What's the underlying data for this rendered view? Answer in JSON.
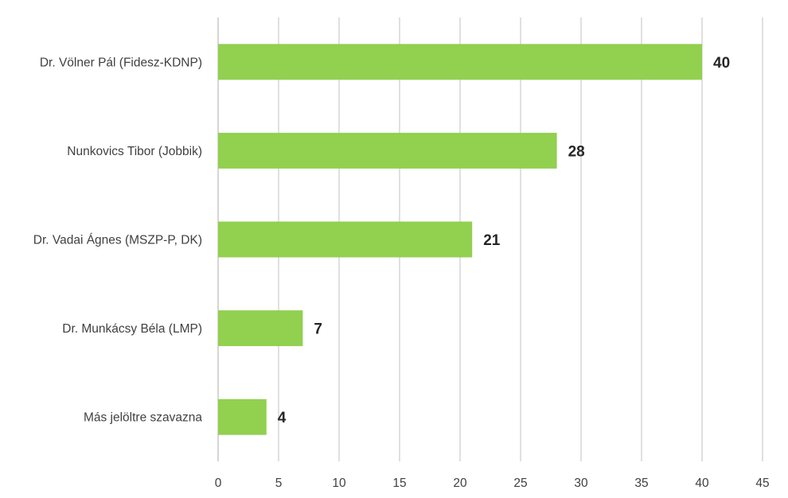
{
  "chart_data": {
    "type": "bar",
    "orientation": "horizontal",
    "categories": [
      "Dr. Völner Pál (Fidesz-KDNP)",
      "Nunkovics Tibor (Jobbik)",
      "Dr. Vadai Ágnes (MSZP-P, DK)",
      "Dr. Munkácsy Béla (LMP)",
      "Más jelöltre szavazna"
    ],
    "values": [
      40,
      28,
      21,
      7,
      4
    ],
    "data_labels": [
      "40",
      "28",
      "21",
      "7",
      "4"
    ],
    "xlim": [
      0,
      45
    ],
    "x_ticks": [
      "0",
      "5",
      "10",
      "15",
      "20",
      "25",
      "30",
      "35",
      "40",
      "45"
    ],
    "title": "",
    "xlabel": "",
    "ylabel": "",
    "grid": "vertical",
    "legend": "none",
    "bar_color": "#92d050"
  }
}
